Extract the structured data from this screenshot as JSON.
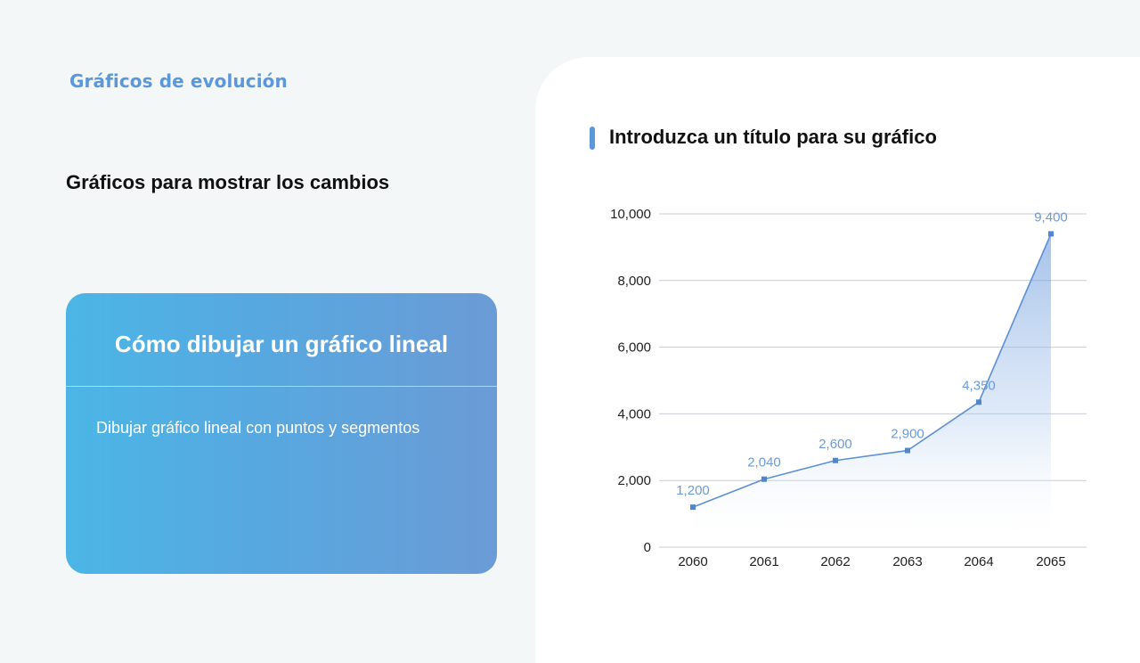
{
  "left": {
    "kicker": "Gráficos de evolución",
    "subtitle": "Gráficos para mostrar los cambios",
    "card": {
      "title": "Cómo dibujar un gráfico lineal",
      "body": "Dibujar gráfico lineal con puntos y segmentos"
    }
  },
  "colors": {
    "accent": "#5b97db",
    "line": "#5b8fd6",
    "card_gradient_start": "#4bb6e6",
    "card_gradient_end": "#6b9bd6"
  },
  "chart_data": {
    "type": "area",
    "title": "Introduzca un título para su gráfico",
    "categories": [
      "2060",
      "2061",
      "2062",
      "2063",
      "2064",
      "2065"
    ],
    "values": [
      1200,
      2040,
      2600,
      2900,
      4350,
      9400
    ],
    "value_labels": [
      "1,200",
      "2,040",
      "2,600",
      "2,900",
      "4,350",
      "9,400"
    ],
    "xlabel": "",
    "ylabel": "",
    "ylim": [
      0,
      10000
    ],
    "yticks": [
      0,
      2000,
      4000,
      6000,
      8000,
      10000
    ],
    "ytick_labels": [
      "0",
      "2,000",
      "4,000",
      "6,000",
      "8,000",
      "10,000"
    ],
    "grid": true,
    "legend": "none",
    "markers": "square",
    "data_labels": true
  }
}
